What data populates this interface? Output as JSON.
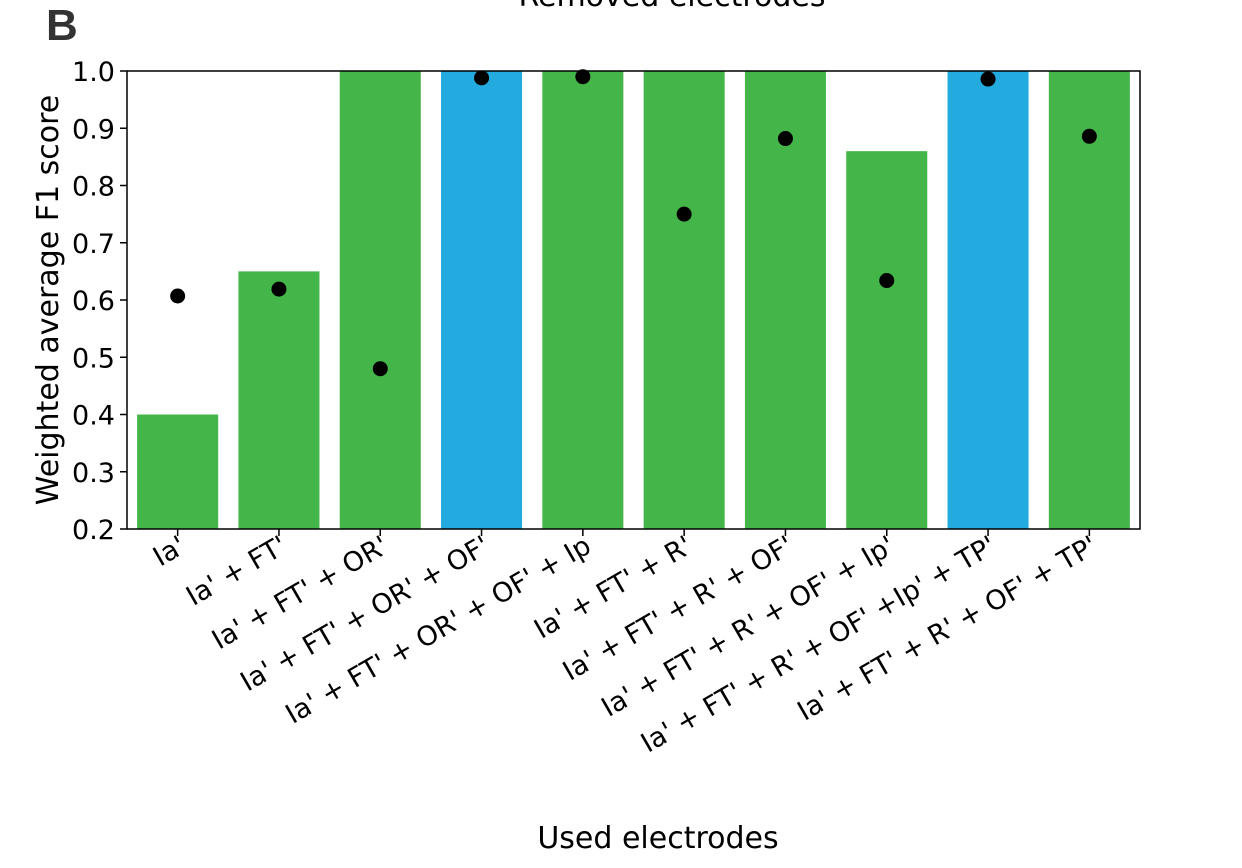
{
  "panel_label": "B",
  "chart_data": {
    "type": "bar",
    "top_title": "Removed electrodes",
    "xlabel": "Used electrodes",
    "ylabel": "Weighted average F1 score",
    "ylim": [
      0.2,
      1.0
    ],
    "yticks": [
      "0.2",
      "0.3",
      "0.4",
      "0.5",
      "0.6",
      "0.7",
      "0.8",
      "0.9",
      "1.0"
    ],
    "categories": [
      "Ia'",
      "Ia' + FT'",
      "Ia' + FT' + OR'",
      "Ia' + FT' + OR' + OF'",
      "Ia' + FT' + OR' + OF' + Ip",
      "Ia' + FT' + R'",
      "Ia' + FT' + R' + OF'",
      "Ia' + FT' + R' + OF' + Ip'",
      "Ia' + FT' + R' + OF' +Ip' + TP'",
      "Ia' + FT' + R' + OF' + TP'"
    ],
    "values": [
      0.4,
      0.65,
      1.0,
      1.0,
      1.0,
      1.0,
      1.0,
      0.86,
      1.0,
      1.0
    ],
    "bar_colors": [
      "#44b649",
      "#44b649",
      "#44b649",
      "#23aadf",
      "#44b649",
      "#44b649",
      "#44b649",
      "#44b649",
      "#23aadf",
      "#44b649"
    ],
    "dots": [
      0.607,
      0.619,
      0.48,
      0.988,
      0.99,
      0.75,
      0.882,
      0.634,
      0.986,
      0.886
    ],
    "dot_color": "#000000"
  }
}
